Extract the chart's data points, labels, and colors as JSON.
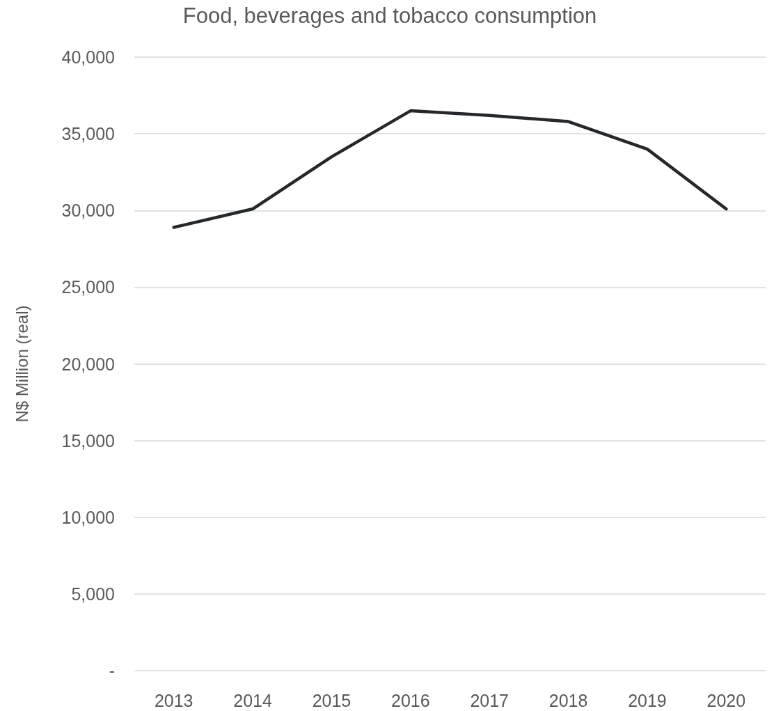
{
  "chart_data": {
    "type": "line",
    "title": "Food, beverages and tobacco consumption",
    "ylabel": "N$ Million (real)",
    "categories": [
      "2013",
      "2014",
      "2015",
      "2016",
      "2017",
      "2018",
      "2019",
      "2020"
    ],
    "series": [
      {
        "color": "#25282b",
        "values": [
          28900,
          30100,
          33500,
          36500,
          36200,
          35800,
          34000,
          30100
        ]
      }
    ],
    "ylim": [
      0,
      40000
    ],
    "yticks": [
      {
        "value": 0,
        "label": "-"
      },
      {
        "value": 5000,
        "label": "5,000"
      },
      {
        "value": 10000,
        "label": "10,000"
      },
      {
        "value": 15000,
        "label": "15,000"
      },
      {
        "value": 20000,
        "label": "20,000"
      },
      {
        "value": 25000,
        "label": "25,000"
      },
      {
        "value": 30000,
        "label": "30,000"
      },
      {
        "value": 35000,
        "label": "35,000"
      },
      {
        "value": 40000,
        "label": "40,000"
      }
    ],
    "grid": "y",
    "marker": "none",
    "line_style": "solid"
  }
}
